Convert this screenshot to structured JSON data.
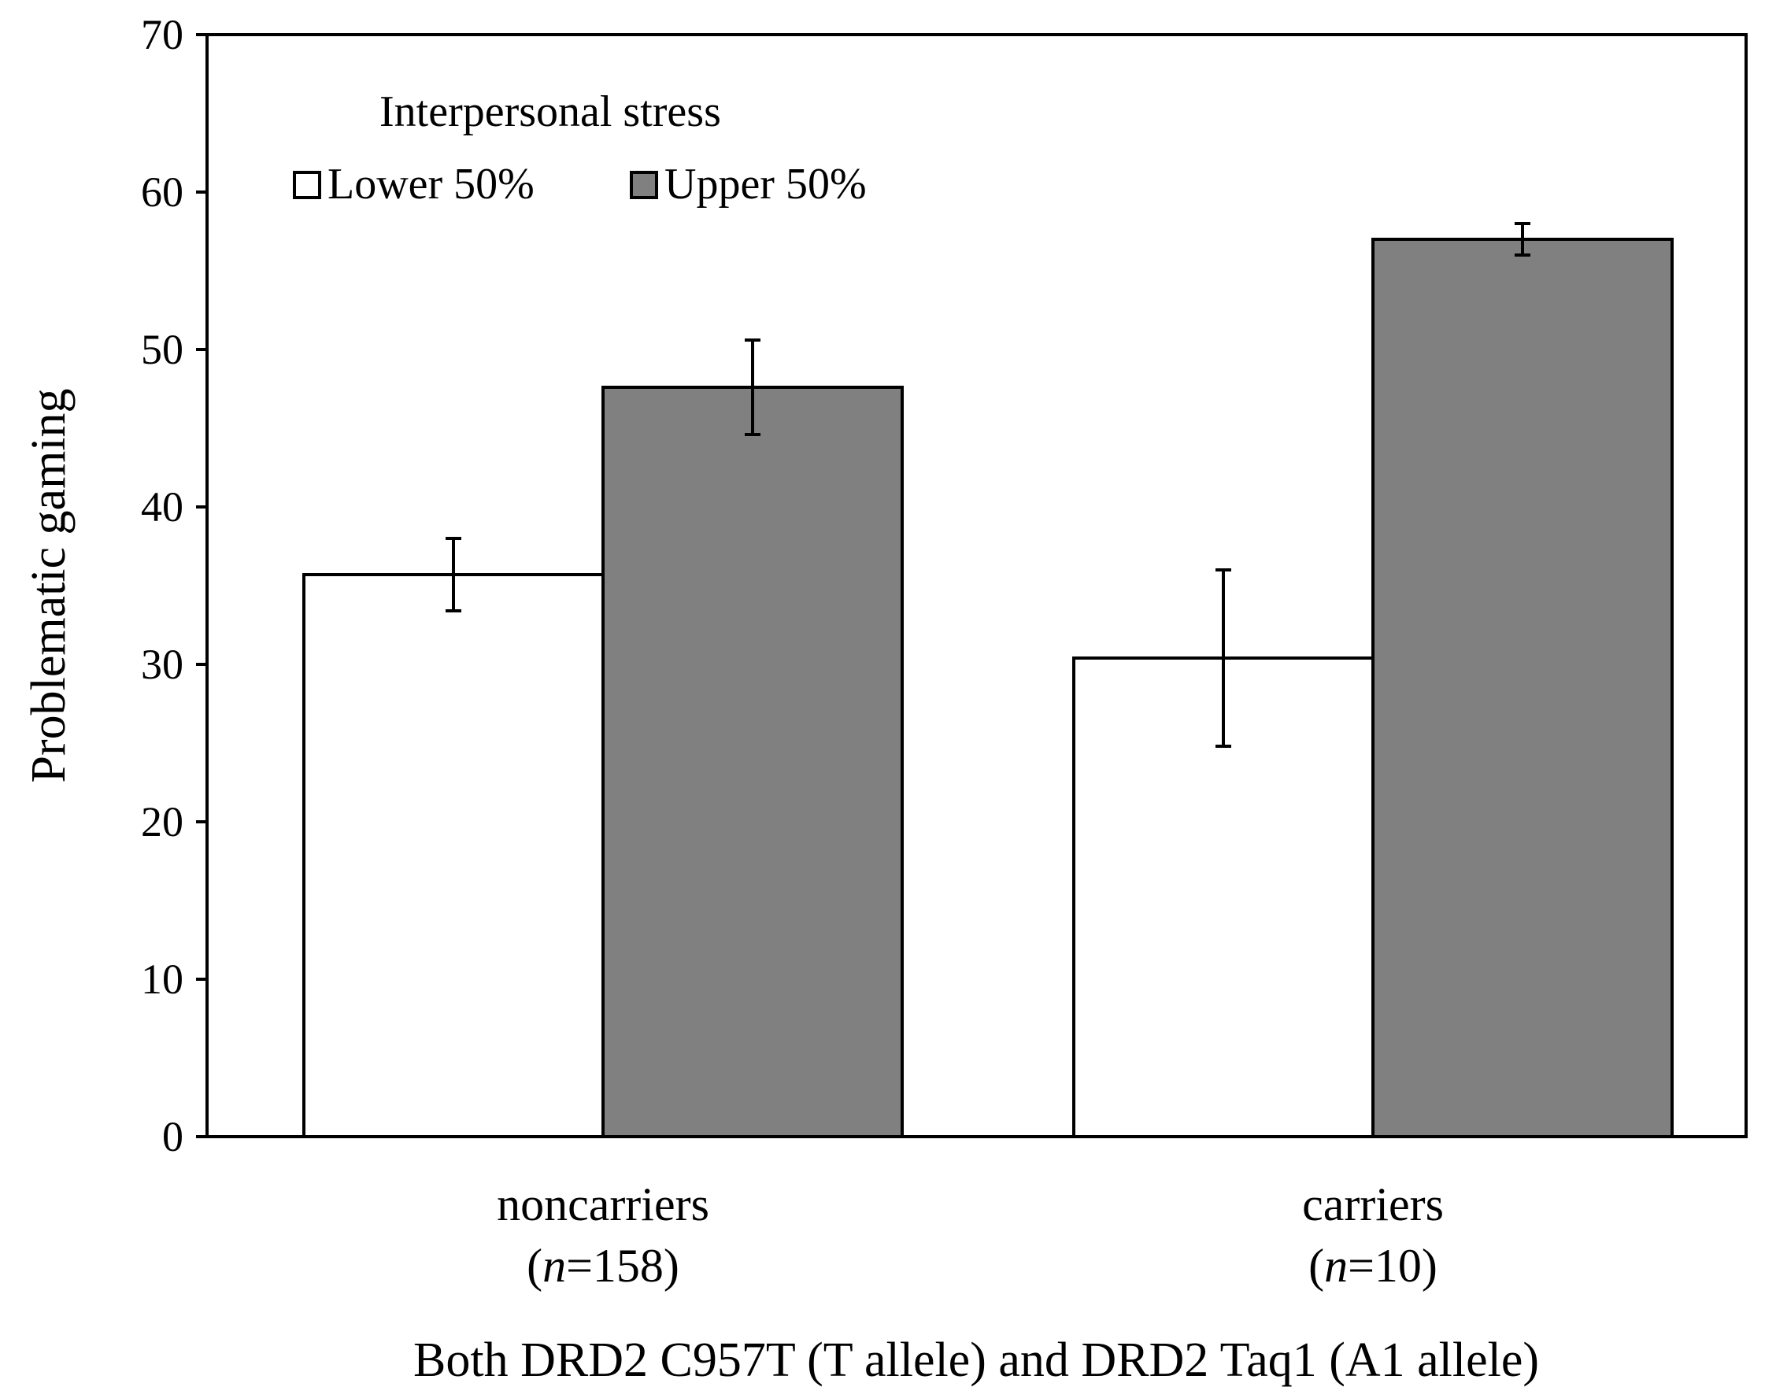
{
  "chart_data": {
    "type": "bar",
    "title": "",
    "ylabel": "Problematic gaming",
    "xlabel": "Both DRD2 C957T (T allele) and DRD2 Taq1 (A1 allele)",
    "ylim": [
      0,
      70
    ],
    "yticks": [
      0,
      10,
      20,
      30,
      40,
      50,
      60,
      70
    ],
    "categories": [
      {
        "name": "noncarriers",
        "n_prefix": "(",
        "n_symbol": "n",
        "n_value": "=158)"
      },
      {
        "name": "carriers",
        "n_prefix": "(",
        "n_symbol": "n",
        "n_value": "=10)"
      }
    ],
    "legend": {
      "title": "Interpersonal stress",
      "placement": "top-left"
    },
    "series": [
      {
        "name": "Lower 50%",
        "color": "#ffffff",
        "values": [
          35.7,
          30.4
        ],
        "error": [
          2.3,
          5.6
        ]
      },
      {
        "name": "Upper 50%",
        "color": "#808080",
        "values": [
          47.6,
          57.0
        ],
        "error": [
          3.0,
          1.0
        ]
      }
    ],
    "grid": false
  }
}
